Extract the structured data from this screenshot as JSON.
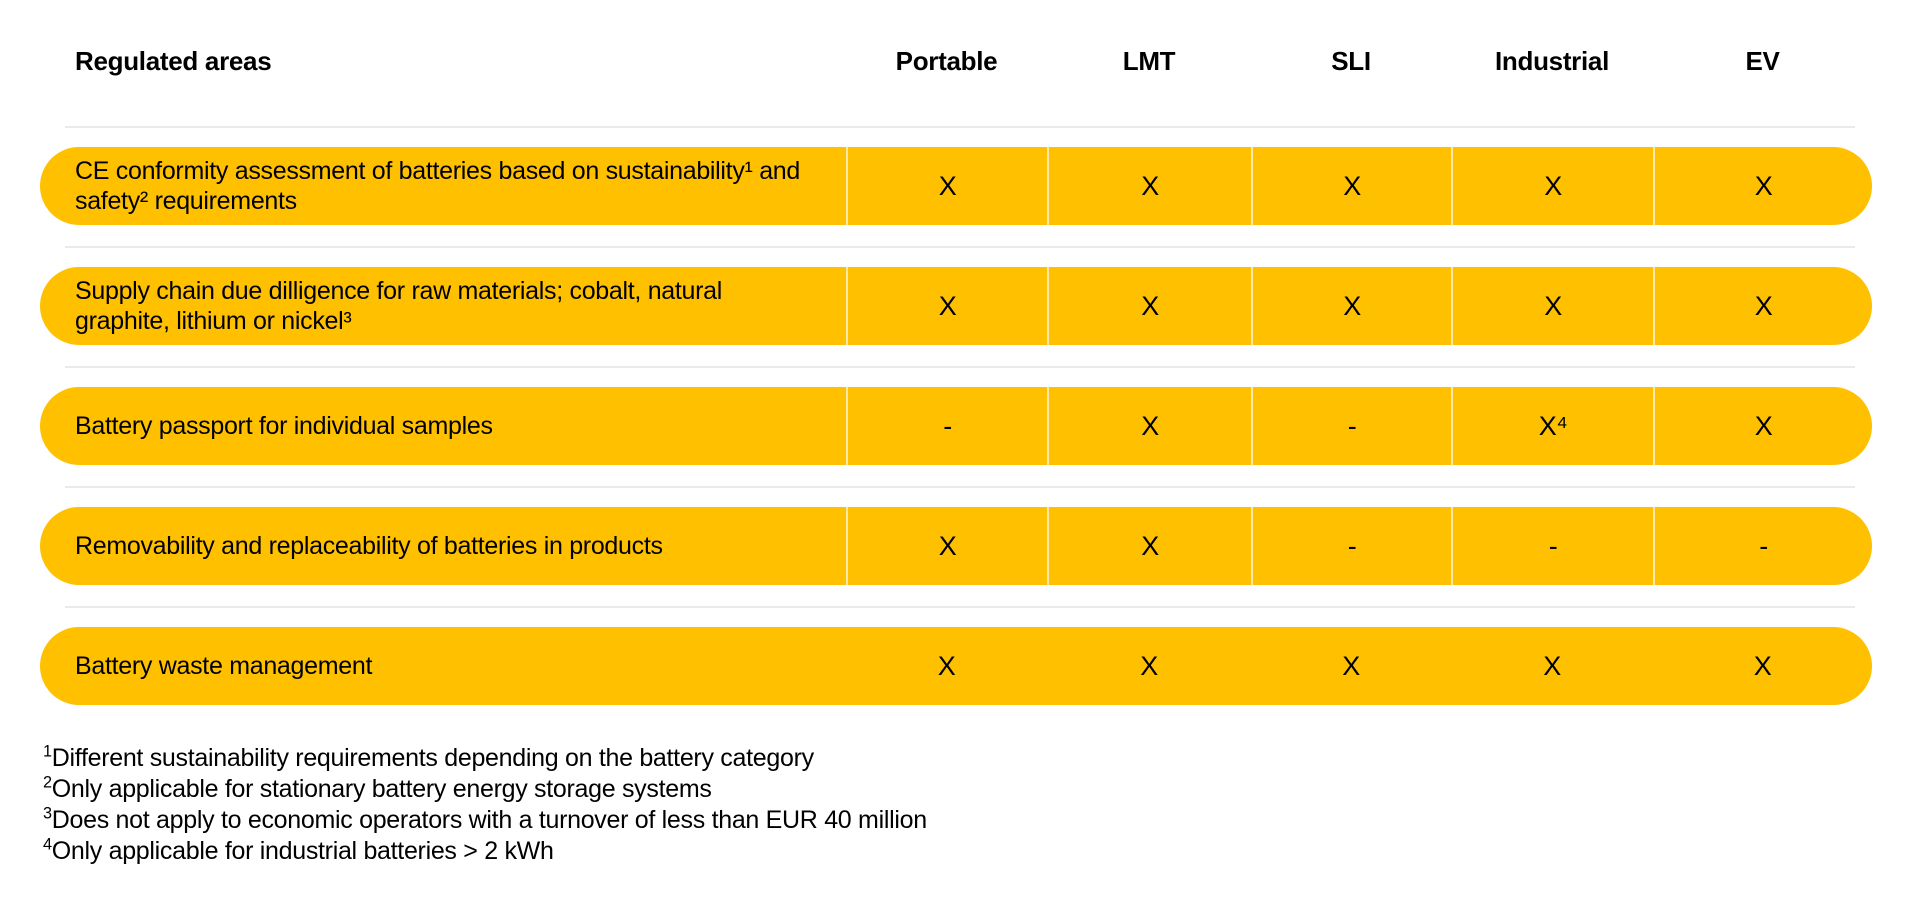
{
  "colors": {
    "row_background": "#FFC000",
    "cell_divider": "#FFE9A8",
    "separator_line": "#EAEAEA",
    "text": "#000000",
    "page_background": "#FFFFFF"
  },
  "table": {
    "corner_label": "Regulated areas",
    "columns": [
      "Portable",
      "LMT",
      "SLI",
      "Industrial",
      "EV"
    ],
    "rows": [
      {
        "label": "CE conformity assessment of batteries based on sustainability¹ and safety² requirements",
        "cells": [
          "X",
          "X",
          "X",
          "X",
          "X"
        ]
      },
      {
        "label": "Supply chain due dilligence for raw materials; cobalt, natural graphite, lithium or nickel³",
        "cells": [
          "X",
          "X",
          "X",
          "X",
          "X"
        ]
      },
      {
        "label": "Battery passport for individual samples",
        "cells": [
          "-",
          "X",
          "-",
          "X⁴",
          "X"
        ]
      },
      {
        "label": "Removability and replaceability of batteries in products",
        "cells": [
          "X",
          "X",
          "-",
          "-",
          "-"
        ]
      },
      {
        "label": "Battery waste management",
        "cells": [
          "X",
          "X",
          "X",
          "X",
          "X"
        ]
      }
    ]
  },
  "footnotes": [
    {
      "sup": "1",
      "text": "Different sustainability requirements depending on the battery category"
    },
    {
      "sup": "2",
      "text": "Only applicable for stationary battery energy storage systems"
    },
    {
      "sup": "3",
      "text": "Does not apply to economic operators with a turnover of less than EUR 40 million"
    },
    {
      "sup": "4",
      "text": "Only applicable for industrial batteries > 2 kWh"
    }
  ]
}
